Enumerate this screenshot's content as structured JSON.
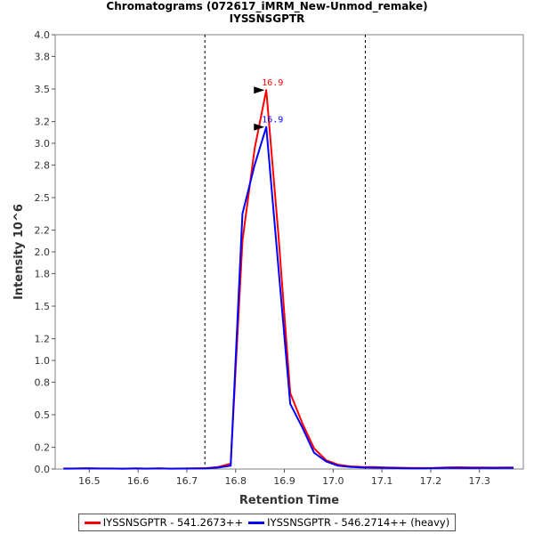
{
  "chart_data": {
    "type": "line",
    "title": "Chromatograms (072617_iMRM_New-Unmod_remake)",
    "subtitle": "IYSSNSGPTR",
    "xlabel": "Retention Time",
    "ylabel": "Intensity 10^6",
    "xlim": [
      16.43,
      17.39
    ],
    "ylim": [
      0,
      4.0
    ],
    "x_ticks": [
      "16.5",
      "16.6",
      "16.7",
      "16.8",
      "16.9",
      "17.0",
      "17.1",
      "17.2",
      "17.3"
    ],
    "y_ticks": [
      "0.0",
      "0.2",
      "0.5",
      "0.8",
      "1.0",
      "1.2",
      "1.5",
      "1.8",
      "2.0",
      "2.2",
      "2.5",
      "2.8",
      "3.0",
      "3.2",
      "3.5",
      "3.8",
      "4.0"
    ],
    "integration_bounds": [
      16.737,
      17.066
    ],
    "series": [
      {
        "name": "IYSSNSGPTR - 541.2673++",
        "color": "#ff0000",
        "x": [
          16.447,
          16.471,
          16.496,
          16.52,
          16.545,
          16.569,
          16.594,
          16.618,
          16.643,
          16.667,
          16.692,
          16.716,
          16.741,
          16.765,
          16.79,
          16.814,
          16.839,
          16.863,
          16.888,
          16.912,
          16.937,
          16.961,
          16.986,
          17.01,
          17.035,
          17.059,
          17.084,
          17.108,
          17.133,
          17.157,
          17.182,
          17.206,
          17.231,
          17.255,
          17.28,
          17.304,
          17.329,
          17.353,
          17.37
        ],
        "values": [
          0.005,
          0.005,
          0.007,
          0.004,
          0.005,
          0.003,
          0.004,
          0.003,
          0.005,
          0.004,
          0.005,
          0.006,
          0.008,
          0.02,
          0.05,
          2.1,
          2.95,
          3.49,
          2.15,
          0.7,
          0.42,
          0.19,
          0.08,
          0.04,
          0.025,
          0.02,
          0.018,
          0.015,
          0.012,
          0.01,
          0.009,
          0.01,
          0.015,
          0.016,
          0.014,
          0.015,
          0.013,
          0.014,
          0.015
        ],
        "peak_label": "16.9"
      },
      {
        "name": "IYSSNSGPTR - 546.2714++ (heavy)",
        "color": "#0000ff",
        "x": [
          16.447,
          16.471,
          16.496,
          16.52,
          16.545,
          16.569,
          16.594,
          16.618,
          16.643,
          16.667,
          16.692,
          16.716,
          16.741,
          16.765,
          16.79,
          16.814,
          16.839,
          16.863,
          16.888,
          16.912,
          16.937,
          16.961,
          16.986,
          17.01,
          17.035,
          17.059,
          17.084,
          17.108,
          17.133,
          17.157,
          17.182,
          17.206,
          17.231,
          17.255,
          17.28,
          17.304,
          17.329,
          17.353,
          17.37
        ],
        "values": [
          0.003,
          0.004,
          0.006,
          0.005,
          0.004,
          0.003,
          0.006,
          0.004,
          0.006,
          0.003,
          0.004,
          0.005,
          0.006,
          0.015,
          0.03,
          2.35,
          2.8,
          3.15,
          1.85,
          0.6,
          0.38,
          0.15,
          0.07,
          0.03,
          0.02,
          0.015,
          0.012,
          0.01,
          0.008,
          0.006,
          0.006,
          0.008,
          0.01,
          0.01,
          0.009,
          0.01,
          0.009,
          0.01,
          0.01
        ],
        "peak_label": "16.9"
      }
    ],
    "legend": "bottom"
  }
}
